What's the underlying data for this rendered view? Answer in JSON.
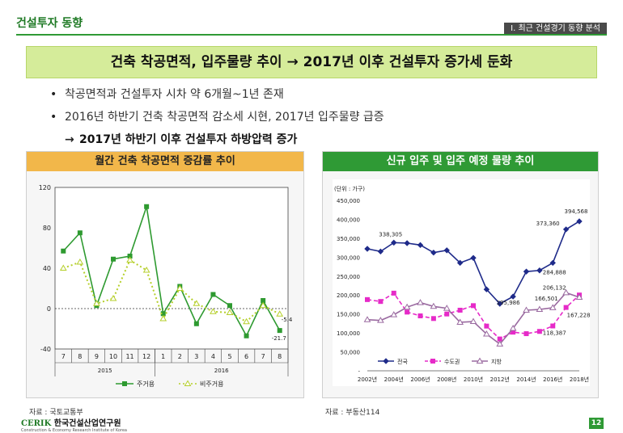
{
  "header": {
    "title": "건설투자 동향",
    "section": "Ⅰ. 최근 건설경기 동향 분석"
  },
  "banner": "건축 착공면적, 입주물량 추이 → 2017년 이후 건설투자 증가세 둔화",
  "bullets": [
    {
      "mark": "•",
      "text": "착공면적과 건설투자 시차 약 6개월~1년 존재"
    },
    {
      "mark": "•",
      "text": "2016년 하반기 건축 착공면적 감소세 시현, 2017년 입주물량 급증"
    },
    {
      "mark": "→",
      "text": "2017년 하반기 이후 건설투자 하방압력 증가"
    }
  ],
  "panel_left": {
    "title": "월간 건축 착공면적 증감률 추이",
    "source": "자료 : 국토교통부"
  },
  "panel_right": {
    "title": "신규 입주 및 입주 예정 물량 추이",
    "source": "자료 : 부동산114"
  },
  "chart_data": [
    {
      "type": "line",
      "title": "월간 건축 착공면적 증감률 추이",
      "categories": [
        "7",
        "8",
        "9",
        "10",
        "11",
        "12",
        "1",
        "2",
        "3",
        "4",
        "5",
        "6",
        "7",
        "8"
      ],
      "year_groups": [
        {
          "label": "2015",
          "months": 6
        },
        {
          "label": "2016",
          "months": 8
        }
      ],
      "ylim": [
        -40,
        120
      ],
      "yticks": [
        120,
        80,
        40,
        0,
        -40
      ],
      "series": [
        {
          "name": "주거용",
          "color": "#2e9a30",
          "style": "solid",
          "marker": "square",
          "values": [
            57,
            75,
            3,
            49,
            52,
            101,
            -5,
            22,
            -15,
            14,
            3,
            -27,
            8,
            -21.7
          ]
        },
        {
          "name": "비주거용",
          "color": "#b5cf2a",
          "style": "dotted",
          "marker": "triangle",
          "values": [
            40,
            46,
            5,
            10,
            48,
            38,
            -10,
            20,
            5,
            -3,
            -4,
            -13,
            3,
            -5.4
          ]
        }
      ],
      "data_labels": [
        {
          "text": "-5.4"
        },
        {
          "text": "-21.7"
        }
      ]
    },
    {
      "type": "line",
      "title": "신규 입주 및 입주 예정 물량 추이",
      "unit": "(단위 : 가구)",
      "x": [
        2002,
        2003,
        2004,
        2005,
        2006,
        2007,
        2008,
        2009,
        2010,
        2011,
        2012,
        2013,
        2014,
        2015,
        2016,
        2017,
        2018
      ],
      "xticks": [
        "2002년",
        "2004년",
        "2006년",
        "2008년",
        "2010년",
        "2012년",
        "2014년",
        "2016년",
        "2018년"
      ],
      "ylim": [
        0,
        450000
      ],
      "yticks": [
        "450,000",
        "400,000",
        "350,000",
        "300,000",
        "250,000",
        "200,000",
        "150,000",
        "100,000",
        "50,000",
        "-"
      ],
      "series": [
        {
          "name": "전국",
          "color": "#1f2b8a",
          "style": "solid",
          "marker": "diamond",
          "values": [
            322000,
            315000,
            338305,
            337000,
            332000,
            312000,
            318000,
            285000,
            298000,
            215000,
            177000,
            195986,
            262000,
            265000,
            284888,
            373360,
            394568
          ]
        },
        {
          "name": "수도권",
          "color": "#e62ac8",
          "style": "dashed",
          "marker": "square",
          "values": [
            188000,
            183000,
            205000,
            155000,
            145000,
            138000,
            150000,
            160000,
            172000,
            118000,
            84000,
            102000,
            98000,
            104000,
            118387,
            167228,
            200000
          ]
        },
        {
          "name": "지방",
          "color": "#9a6aa0",
          "style": "solid",
          "marker": "triangle",
          "values": [
            135000,
            133000,
            148000,
            168000,
            180000,
            170000,
            165000,
            128000,
            130000,
            97000,
            70615,
            112000,
            160000,
            162000,
            166501,
            206132,
            194000
          ]
        }
      ],
      "data_labels": [
        "338,305",
        "394,568",
        "373,360",
        "284,888",
        "206,132",
        "166,501",
        "167,228",
        "195,986",
        "118,387",
        "70,615"
      ]
    }
  ],
  "footer": {
    "logo_mark": "CERIK",
    "logo_name": "한국건설산업연구원",
    "logo_sub": "Construction & Economy Research Institute of Korea",
    "page": "12"
  }
}
